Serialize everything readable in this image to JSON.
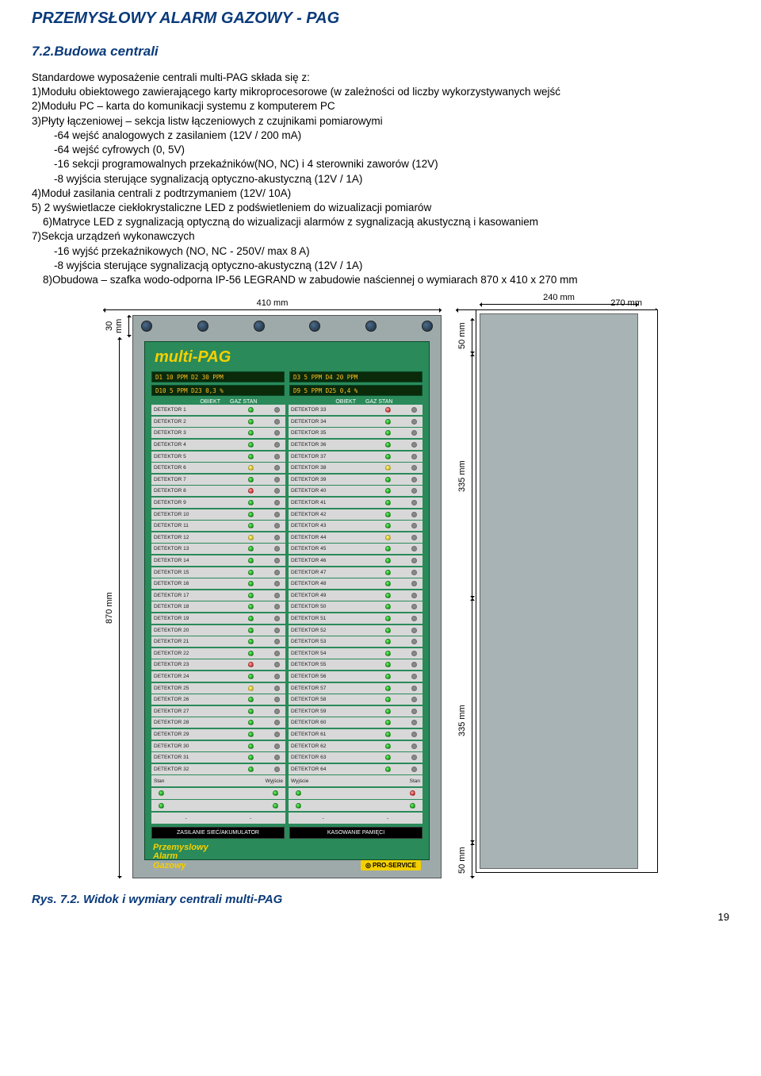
{
  "header": "PRZEMYSŁOWY ALARM GAZOWY - PAG",
  "section": "7.2.Budowa centrali",
  "intro": "Standardowe wyposażenie centrali multi-PAG składa się z:",
  "items": [
    "1)Modułu obiektowego zawierającego karty mikroprocesorowe (w zależności od liczby wykorzystywanych wejść",
    "2)Modułu PC – karta do komunikacji systemu z komputerem PC",
    "3)Płyty łączeniowej – sekcja listw łączeniowych z czujnikami pomiarowymi"
  ],
  "sub3": [
    "-64 wejść analogowych z zasilaniem (12V / 200 mA)",
    "-64 wejść cyfrowych (0, 5V)",
    "-16 sekcji programowalnych przekaźników(NO, NC) i 4 sterowniki zaworów (12V)",
    "-8 wyjścia sterujące sygnalizacją optyczno-akustyczną (12V / 1A)"
  ],
  "items2": [
    "4)Moduł zasilania centrali z podtrzymaniem (12V/ 10A)",
    "5) 2 wyświetlacze ciekłokrystaliczne LED z podświetleniem do wizualizacji pomiarów",
    "6)Matryce LED z sygnalizacją optyczną do wizualizacji alarmów z sygnalizacją akustyczną i kasowaniem",
    "7)Sekcja urządzeń wykonawczych"
  ],
  "sub7": [
    "-16 wyjść przekaźnikowych (NO, NC - 250V/ max 8 A)",
    "-8 wyjścia sterujące sygnalizacją optyczno-akustyczną (12V / 1A)"
  ],
  "items3": [
    "8)Obudowa – szafka wodo-odporna IP-56 LEGRAND w zabudowie naściennej o wymiarach 870 x 410 x 270 mm"
  ],
  "diagram": {
    "front_width_label": "410 mm",
    "front_height_label": "870 mm",
    "front_top_label": "30 mm",
    "side_width_label": "270 mm",
    "side_inner_label": "240 mm",
    "side_h1": "50 mm",
    "side_h2": "335 mm",
    "side_h3": "335 mm",
    "side_h4": "50 mm",
    "panel": {
      "logo": "multi-PAG",
      "lcd": [
        [
          "D1 10 PPM   D2 30 PPM",
          "D3 5 PPM   D4 20 PPM"
        ],
        [
          "D10 5 PPM  D23 0,3 %",
          "D9 5 PPM   D25 0,4 %"
        ]
      ],
      "col_headers": [
        "OBIEKT",
        "GAZ STAN",
        "OBIEKT",
        "GAZ STAN"
      ],
      "detectors_left": [
        {
          "n": "DETEKTOR 1",
          "c": "g"
        },
        {
          "n": "DETEKTOR 2",
          "c": "g"
        },
        {
          "n": "DETEKTOR 3",
          "c": "g"
        },
        {
          "n": "DETEKTOR 4",
          "c": "g"
        },
        {
          "n": "DETEKTOR 5",
          "c": "g"
        },
        {
          "n": "DETEKTOR 6",
          "c": "y"
        },
        {
          "n": "DETEKTOR 7",
          "c": "g"
        },
        {
          "n": "DETEKTOR 8",
          "c": "r"
        },
        {
          "n": "DETEKTOR 9",
          "c": "g"
        },
        {
          "n": "DETEKTOR 10",
          "c": "g"
        },
        {
          "n": "DETEKTOR 11",
          "c": "g"
        },
        {
          "n": "DETEKTOR 12",
          "c": "y"
        },
        {
          "n": "DETEKTOR 13",
          "c": "g"
        },
        {
          "n": "DETEKTOR 14",
          "c": "g"
        },
        {
          "n": "DETEKTOR 15",
          "c": "g"
        },
        {
          "n": "DETEKTOR 16",
          "c": "g"
        },
        {
          "n": "DETEKTOR 17",
          "c": "g"
        },
        {
          "n": "DETEKTOR 18",
          "c": "g"
        },
        {
          "n": "DETEKTOR 19",
          "c": "g"
        },
        {
          "n": "DETEKTOR 20",
          "c": "g"
        },
        {
          "n": "DETEKTOR 21",
          "c": "g"
        },
        {
          "n": "DETEKTOR 22",
          "c": "g"
        },
        {
          "n": "DETEKTOR 23",
          "c": "r"
        },
        {
          "n": "DETEKTOR 24",
          "c": "g"
        },
        {
          "n": "DETEKTOR 25",
          "c": "y"
        },
        {
          "n": "DETEKTOR 26",
          "c": "g"
        },
        {
          "n": "DETEKTOR 27",
          "c": "g"
        },
        {
          "n": "DETEKTOR 28",
          "c": "g"
        },
        {
          "n": "DETEKTOR 29",
          "c": "g"
        },
        {
          "n": "DETEKTOR 30",
          "c": "g"
        },
        {
          "n": "DETEKTOR 31",
          "c": "g"
        },
        {
          "n": "DETEKTOR 32",
          "c": "g"
        }
      ],
      "detectors_right": [
        {
          "n": "DETEKTOR 33",
          "c": "r"
        },
        {
          "n": "DETEKTOR 34",
          "c": "g"
        },
        {
          "n": "DETEKTOR 35",
          "c": "g"
        },
        {
          "n": "DETEKTOR 36",
          "c": "g"
        },
        {
          "n": "DETEKTOR 37",
          "c": "g"
        },
        {
          "n": "DETEKTOR 38",
          "c": "y"
        },
        {
          "n": "DETEKTOR 39",
          "c": "g"
        },
        {
          "n": "DETEKTOR 40",
          "c": "g"
        },
        {
          "n": "DETEKTOR 41",
          "c": "g"
        },
        {
          "n": "DETEKTOR 42",
          "c": "g"
        },
        {
          "n": "DETEKTOR 43",
          "c": "g"
        },
        {
          "n": "DETEKTOR 44",
          "c": "y"
        },
        {
          "n": "DETEKTOR 45",
          "c": "g"
        },
        {
          "n": "DETEKTOR 46",
          "c": "g"
        },
        {
          "n": "DETEKTOR 47",
          "c": "g"
        },
        {
          "n": "DETEKTOR 48",
          "c": "g"
        },
        {
          "n": "DETEKTOR 49",
          "c": "g"
        },
        {
          "n": "DETEKTOR 50",
          "c": "g"
        },
        {
          "n": "DETEKTOR 51",
          "c": "g"
        },
        {
          "n": "DETEKTOR 52",
          "c": "g"
        },
        {
          "n": "DETEKTOR 53",
          "c": "g"
        },
        {
          "n": "DETEKTOR 54",
          "c": "g"
        },
        {
          "n": "DETEKTOR 55",
          "c": "g"
        },
        {
          "n": "DETEKTOR 56",
          "c": "g"
        },
        {
          "n": "DETEKTOR 57",
          "c": "g"
        },
        {
          "n": "DETEKTOR 58",
          "c": "g"
        },
        {
          "n": "DETEKTOR 59",
          "c": "g"
        },
        {
          "n": "DETEKTOR 60",
          "c": "g"
        },
        {
          "n": "DETEKTOR 61",
          "c": "g"
        },
        {
          "n": "DETEKTOR 62",
          "c": "g"
        },
        {
          "n": "DETEKTOR 63",
          "c": "g"
        },
        {
          "n": "DETEKTOR 64",
          "c": "g"
        }
      ],
      "footer_left": "Stan",
      "footer_mid_l": "Wyjście",
      "footer_mid_r": "Wyjście",
      "footer_right": "Stan",
      "power_l": "ZASILANIE SIEĆ/AKUMULATOR",
      "power_r": "KASOWANIE PAMIĘCI",
      "brand_l1": "Przemyslowy",
      "brand_l2": "Alarm",
      "brand_l3": "Gazowy",
      "brand_r": "PRO-SERVICE"
    }
  },
  "caption": "Rys. 7.2. Widok i wymiary centrali multi-PAG",
  "page_num": "19"
}
